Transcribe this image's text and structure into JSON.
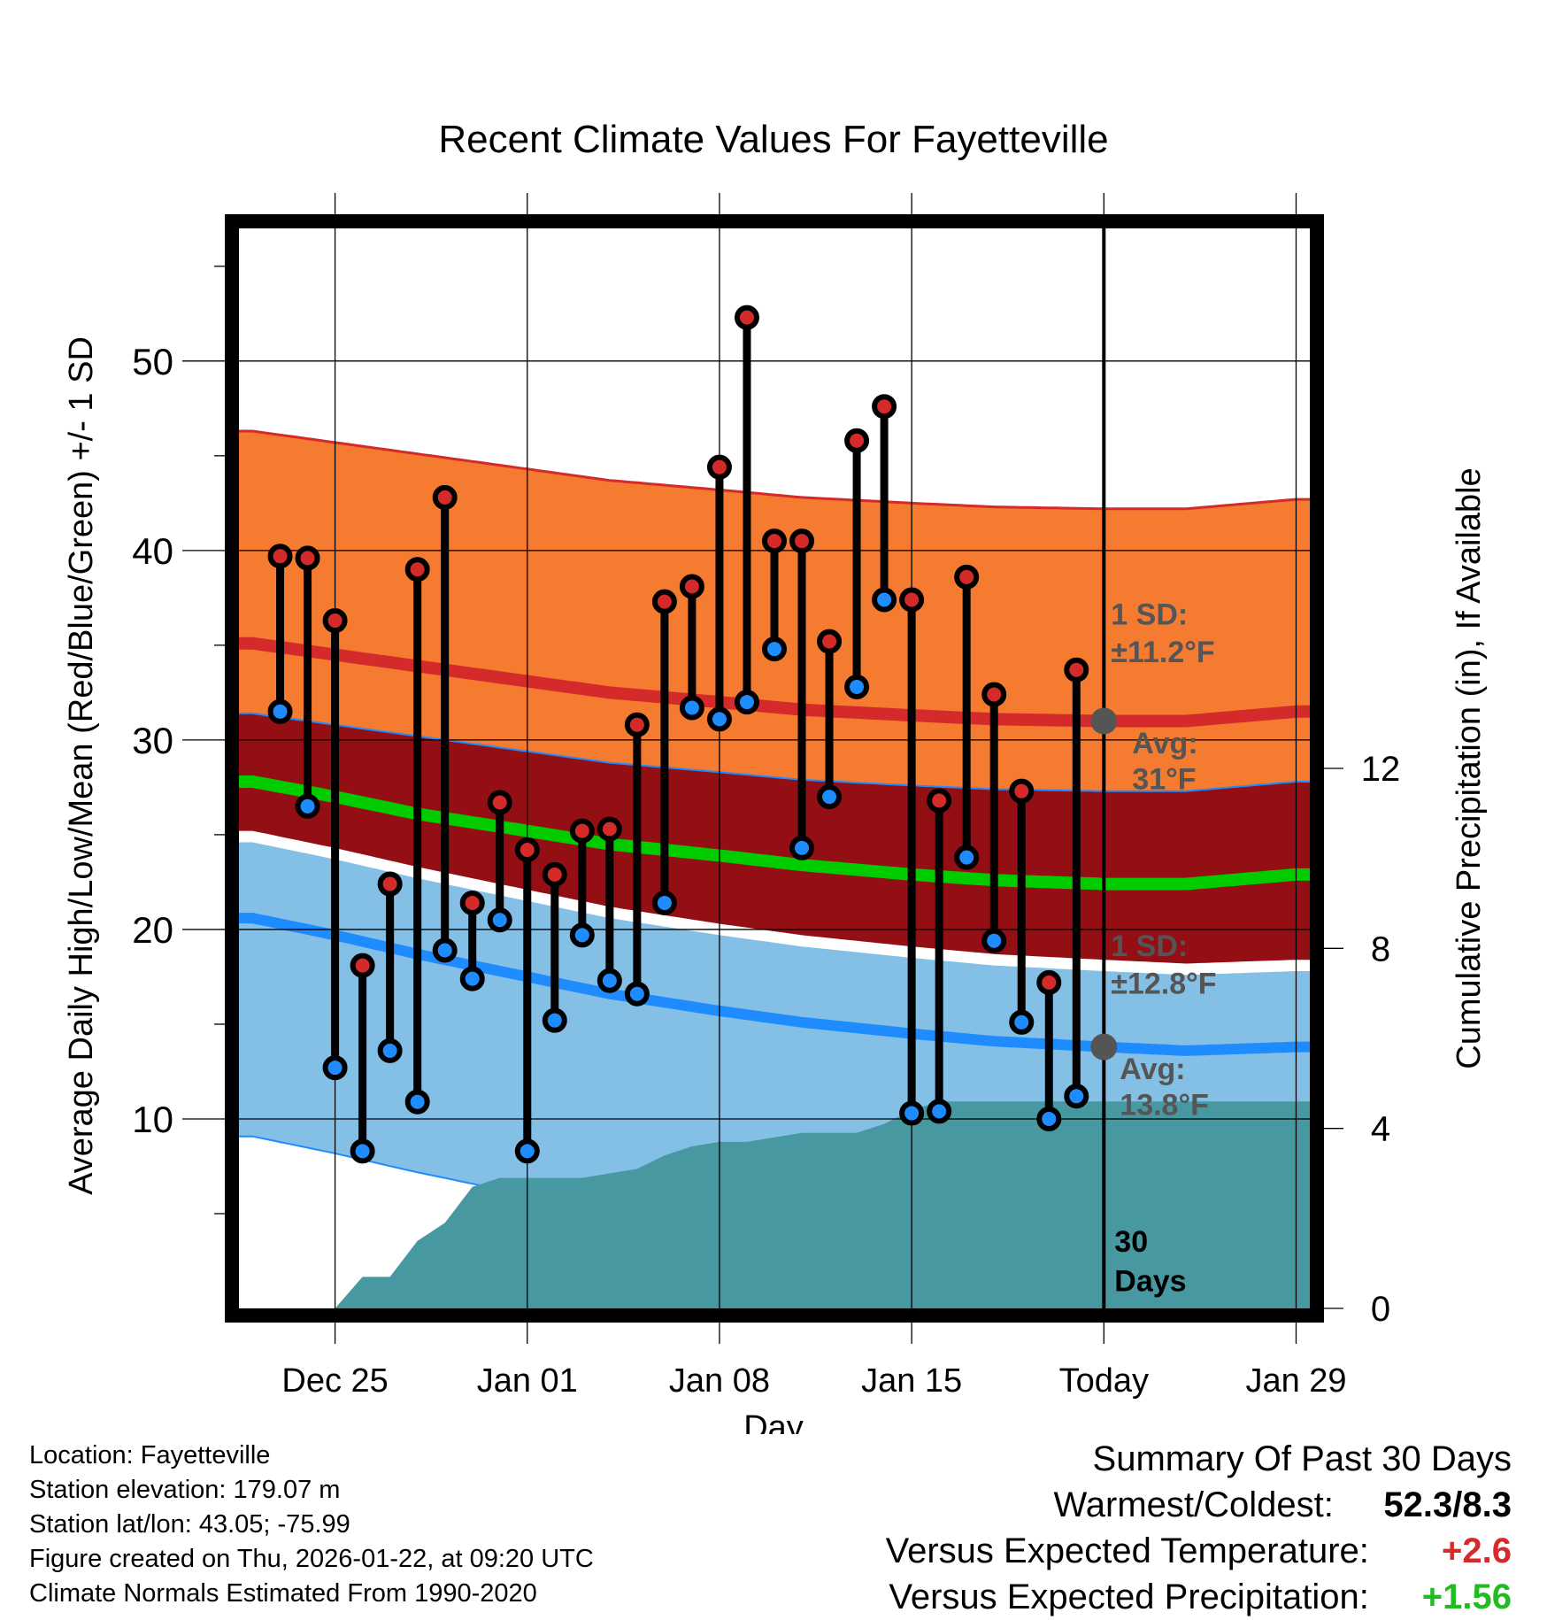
{
  "chart_data": {
    "type": "line",
    "title": "Recent Climate Values For Fayetteville",
    "xlabel": "Day",
    "ylabel": "Average Daily High/Low/Mean (Red/Blue/Green) +/- 1 SD",
    "ylabel_right": "Cumulative Precipitation (in), If Available",
    "ylim": [
      0,
      57
    ],
    "ylim_right": [
      0,
      24
    ],
    "xlim": [
      -3.5,
      35.5
    ],
    "x_ticks": [
      {
        "day": 0,
        "label": "Dec 25"
      },
      {
        "day": 7,
        "label": "Jan 01"
      },
      {
        "day": 14,
        "label": "Jan 08"
      },
      {
        "day": 21,
        "label": "Jan 15"
      },
      {
        "day": 28,
        "label": "Today"
      },
      {
        "day": 35,
        "label": "Jan 29"
      }
    ],
    "y_ticks": [
      10,
      20,
      30,
      40,
      50
    ],
    "y_ticks_right": [
      0,
      4,
      8,
      12
    ],
    "today_day": 28,
    "today_label_line1": "30",
    "today_label_line2": "Days",
    "days": [
      -2,
      -1,
      0,
      1,
      2,
      3,
      4,
      5,
      6,
      7,
      8,
      9,
      10,
      11,
      12,
      13,
      14,
      15,
      16,
      17,
      18,
      19,
      20,
      21,
      22,
      23,
      24,
      25,
      26,
      27
    ],
    "daily_high": [
      39.7,
      39.6,
      36.3,
      18.1,
      22.4,
      39.0,
      42.8,
      21.4,
      26.7,
      24.2,
      22.9,
      25.2,
      25.3,
      30.8,
      37.3,
      38.1,
      44.4,
      52.3,
      40.5,
      40.5,
      35.2,
      45.8,
      47.6,
      37.4,
      26.8,
      38.6,
      32.4,
      27.3,
      17.2,
      33.7
    ],
    "daily_low": [
      31.5,
      26.5,
      12.7,
      8.3,
      13.6,
      10.9,
      18.9,
      17.4,
      20.5,
      8.3,
      15.2,
      19.7,
      17.3,
      16.6,
      21.4,
      31.7,
      31.1,
      32.0,
      34.8,
      24.3,
      27.0,
      32.8,
      37.4,
      10.3,
      10.4,
      23.8,
      19.4,
      15.1,
      10.0,
      11.2
    ],
    "normal_days": [
      -3,
      0,
      3,
      7,
      10,
      14,
      17,
      21,
      24,
      28,
      31,
      35
    ],
    "normal_high": [
      35.1,
      34.5,
      33.9,
      33.1,
      32.5,
      32.0,
      31.6,
      31.3,
      31.1,
      31.0,
      31.0,
      31.5
    ],
    "normal_mean": [
      27.8,
      27.0,
      26.1,
      25.2,
      24.5,
      23.9,
      23.4,
      22.9,
      22.6,
      22.4,
      22.4,
      22.9
    ],
    "normal_low": [
      20.6,
      19.7,
      18.7,
      17.5,
      16.6,
      15.7,
      15.1,
      14.5,
      14.1,
      13.8,
      13.6,
      13.8
    ],
    "sd_high": 11.2,
    "sd_low": 12.8,
    "precip_days": [
      -3,
      0,
      1,
      2,
      3,
      4,
      5,
      6,
      7,
      8,
      9,
      10,
      11,
      12,
      13,
      14,
      15,
      16,
      17,
      18,
      19,
      20,
      21,
      22,
      23,
      24,
      25,
      26,
      27,
      28,
      35.5
    ],
    "precip_cum": [
      0,
      0,
      0.7,
      0.7,
      1.5,
      1.9,
      2.7,
      2.9,
      2.9,
      2.9,
      2.9,
      3.0,
      3.1,
      3.4,
      3.6,
      3.7,
      3.7,
      3.8,
      3.9,
      3.9,
      3.9,
      4.1,
      4.4,
      4.6,
      4.6,
      4.6,
      4.6,
      4.6,
      4.6,
      4.6,
      4.6
    ],
    "annotation_high_sd": "1 SD:",
    "annotation_high_sd_value": "±11.2°F",
    "annotation_high_avg": "Avg:",
    "annotation_high_avg_value": "31°F",
    "annotation_low_sd": "1 SD:",
    "annotation_low_sd_value": "±12.8°F",
    "annotation_low_avg": "Avg:",
    "annotation_low_avg_value": "13.8°F",
    "colors": {
      "high_band": "#F47B30",
      "high_line": "#D42A2A",
      "mean_band": "#940F14",
      "mean_line": "#00CC00",
      "low_band": "#84BFE6",
      "low_line": "#1E8CFF",
      "precip": "#4798A0",
      "high_dot": "#D42A2A",
      "low_dot": "#1E8CFF",
      "annotation": "#555555"
    }
  },
  "footer": {
    "location": "Location: Fayetteville",
    "elevation": "Station elevation: 179.07 m",
    "latlon": "Station lat/lon: 43.05; -75.99",
    "created": "Figure created on Thu, 2026-01-22, at 09:20 UTC",
    "normals": "Climate Normals Estimated From 1990-2020"
  },
  "summary": {
    "title": "Summary Of Past 30 Days",
    "warm_label": "Warmest/Coldest:",
    "warm_value": "52.3/8.3",
    "temp_label": "Versus Expected Temperature:",
    "temp_value": "+2.6",
    "temp_color": "#D42A2A",
    "precip_label": "Versus Expected Precipitation:",
    "precip_value": "+1.56",
    "precip_color": "#22BB22"
  }
}
